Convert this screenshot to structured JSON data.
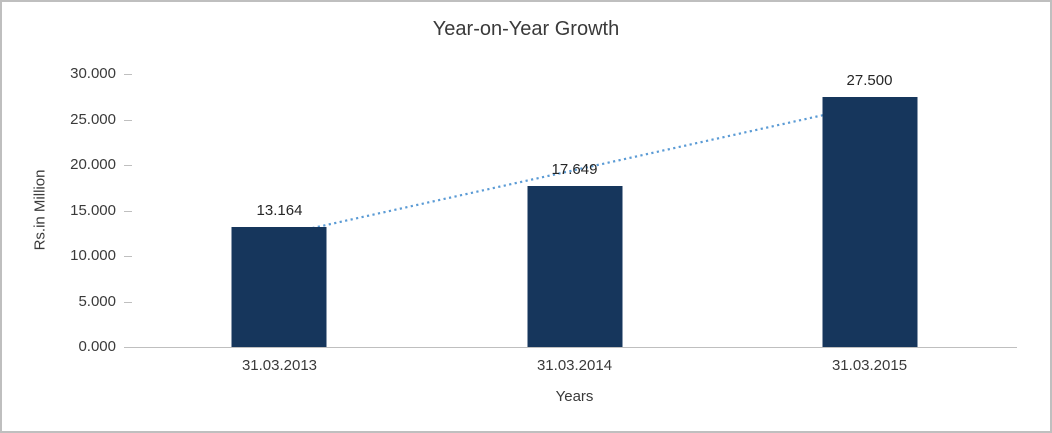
{
  "chart_data": {
    "type": "bar",
    "title": "Year-on-Year Growth",
    "categories": [
      "31.03.2013",
      "31.03.2014",
      "31.03.2015"
    ],
    "values": [
      13164,
      17649,
      27500
    ],
    "value_labels": [
      "13.164",
      "17.649",
      "27.500"
    ],
    "xlabel": "Years",
    "ylabel": "Rs.in Million",
    "ylim": [
      0,
      30000
    ],
    "ytick_step": 5000,
    "ytick_labels": [
      "0.000",
      "5.000",
      "10.000",
      "15.000",
      "20.000",
      "25.000",
      "30.000"
    ],
    "grid": false,
    "legend": "none",
    "bar_color": "#16365c",
    "trendline": true,
    "trendline_style": "dotted",
    "trendline_color": "#5b9bd5"
  }
}
